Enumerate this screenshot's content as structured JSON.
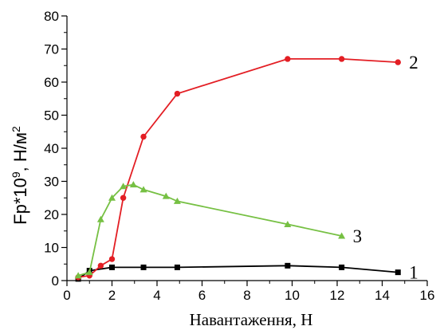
{
  "chart_data": {
    "type": "line",
    "xlabel": "Навантаження, Н",
    "ylabel": {
      "base": "Fp*10",
      "exp": "9",
      "unit": ", Н/м",
      "unit_exp": "2"
    },
    "xlim": [
      0,
      16
    ],
    "ylim": [
      0,
      80
    ],
    "x_ticks": [
      "0",
      "2",
      "4",
      "6",
      "8",
      "10",
      "12",
      "14",
      "16"
    ],
    "y_ticks": [
      "0",
      "10",
      "20",
      "30",
      "40",
      "50",
      "60",
      "70",
      "80"
    ],
    "grid": false,
    "series": [
      {
        "label": "1",
        "color": "#000000",
        "marker": "square",
        "x": [
          0.5,
          1.0,
          2.0,
          3.4,
          4.9,
          9.8,
          12.2,
          14.7
        ],
        "y": [
          0.5,
          3.0,
          4.0,
          4.0,
          4.0,
          4.5,
          4.0,
          2.5
        ]
      },
      {
        "label": "2",
        "color": "#e31e24",
        "marker": "circle",
        "x": [
          0.5,
          1.0,
          1.5,
          2.0,
          2.5,
          3.4,
          4.9,
          9.8,
          12.2,
          14.7
        ],
        "y": [
          1.0,
          1.5,
          4.5,
          6.5,
          25.0,
          43.5,
          56.5,
          67.0,
          67.0,
          66.0
        ]
      },
      {
        "label": "3",
        "color": "#76c043",
        "marker": "triangle",
        "x": [
          0.5,
          1.0,
          1.5,
          2.0,
          2.5,
          2.95,
          3.4,
          4.4,
          4.9,
          9.8,
          12.2
        ],
        "y": [
          1.5,
          2.5,
          18.5,
          25.0,
          28.5,
          29.0,
          27.5,
          25.5,
          24.0,
          17.0,
          13.5
        ]
      }
    ]
  }
}
